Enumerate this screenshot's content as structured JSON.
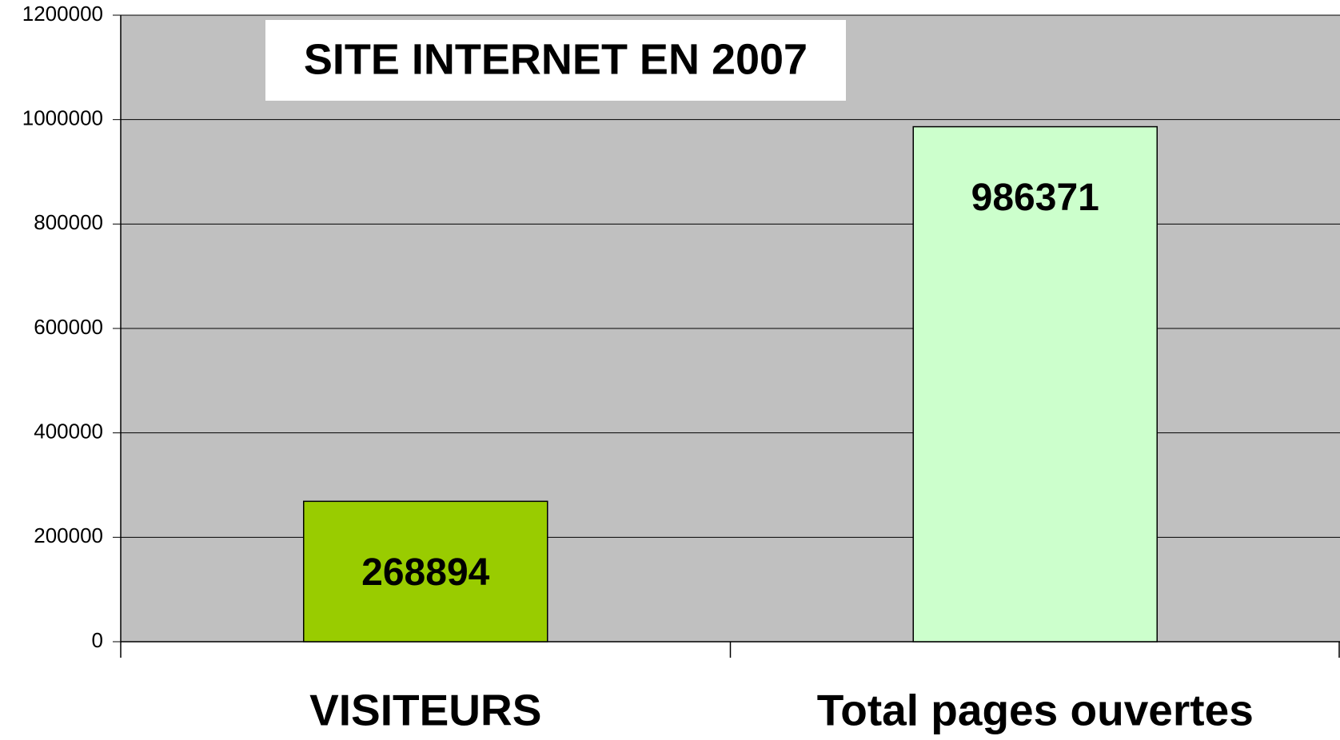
{
  "chart_data": {
    "type": "bar",
    "title": "SITE INTERNET EN 2007",
    "categories": [
      "VISITEURS",
      "Total pages ouvertes"
    ],
    "values": [
      268894,
      986371
    ],
    "colors": [
      "#99cc00",
      "#ccffcc"
    ],
    "ylim": [
      0,
      1200000
    ],
    "yticks": [
      0,
      200000,
      400000,
      600000,
      800000,
      1000000,
      1200000
    ],
    "grid": true
  }
}
